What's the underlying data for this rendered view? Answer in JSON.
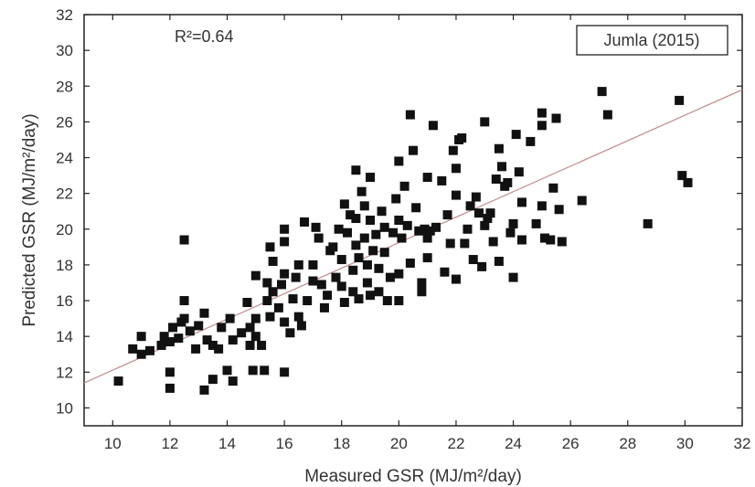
{
  "chart_data": {
    "type": "scatter",
    "xlabel": "Measured GSR (MJ/m²/day)",
    "ylabel": "Predicted GSR (MJ/m²/day)",
    "xlim": [
      9,
      32
    ],
    "ylim": [
      9,
      32
    ],
    "xticks": [
      10,
      12,
      14,
      16,
      18,
      20,
      22,
      24,
      26,
      28,
      30,
      32
    ],
    "yticks": [
      10,
      12,
      14,
      16,
      18,
      20,
      22,
      24,
      26,
      28,
      30,
      32
    ],
    "r2_text": "R²=0.64",
    "legend": "Jumla (2015)",
    "legend_position": "top-right",
    "grid": false,
    "marker_color": "#111111",
    "fit_line": {
      "x": [
        9,
        32
      ],
      "y": [
        11.4,
        27.8
      ],
      "color": "#c08a8a"
    },
    "points": [
      [
        10.2,
        11.5
      ],
      [
        10.7,
        13.3
      ],
      [
        11.0,
        14.0
      ],
      [
        11.0,
        13.0
      ],
      [
        11.3,
        13.2
      ],
      [
        11.7,
        13.5
      ],
      [
        11.8,
        14.0
      ],
      [
        12.0,
        12.0
      ],
      [
        12.0,
        11.1
      ],
      [
        12.0,
        13.7
      ],
      [
        12.1,
        14.5
      ],
      [
        12.3,
        13.9
      ],
      [
        12.4,
        14.8
      ],
      [
        12.5,
        19.4
      ],
      [
        12.5,
        16.0
      ],
      [
        12.5,
        15.0
      ],
      [
        12.7,
        14.3
      ],
      [
        12.9,
        13.3
      ],
      [
        13.0,
        14.6
      ],
      [
        13.2,
        15.3
      ],
      [
        13.2,
        11.0
      ],
      [
        13.3,
        13.8
      ],
      [
        13.5,
        13.5
      ],
      [
        13.5,
        11.6
      ],
      [
        13.7,
        13.3
      ],
      [
        13.8,
        14.5
      ],
      [
        14.0,
        12.1
      ],
      [
        14.1,
        15.0
      ],
      [
        14.2,
        11.5
      ],
      [
        14.2,
        13.8
      ],
      [
        14.5,
        14.2
      ],
      [
        14.7,
        15.9
      ],
      [
        14.8,
        14.5
      ],
      [
        14.8,
        13.5
      ],
      [
        14.9,
        12.1
      ],
      [
        15.0,
        17.4
      ],
      [
        15.0,
        14.0
      ],
      [
        15.0,
        15.0
      ],
      [
        15.2,
        13.5
      ],
      [
        15.3,
        12.1
      ],
      [
        15.4,
        17.0
      ],
      [
        15.4,
        16.0
      ],
      [
        15.5,
        19.0
      ],
      [
        15.5,
        15.1
      ],
      [
        15.6,
        18.2
      ],
      [
        15.6,
        16.5
      ],
      [
        15.8,
        15.6
      ],
      [
        15.9,
        16.9
      ],
      [
        16.0,
        12.0
      ],
      [
        16.0,
        19.3
      ],
      [
        16.0,
        20.0
      ],
      [
        16.0,
        17.5
      ],
      [
        16.0,
        14.8
      ],
      [
        16.2,
        14.2
      ],
      [
        16.3,
        16.1
      ],
      [
        16.4,
        17.3
      ],
      [
        16.5,
        18.0
      ],
      [
        16.5,
        15.1
      ],
      [
        16.6,
        14.6
      ],
      [
        16.7,
        20.4
      ],
      [
        16.8,
        16.0
      ],
      [
        17.0,
        18.0
      ],
      [
        17.0,
        17.1
      ],
      [
        17.1,
        20.1
      ],
      [
        17.2,
        19.5
      ],
      [
        17.3,
        16.9
      ],
      [
        17.4,
        15.6
      ],
      [
        17.5,
        16.3
      ],
      [
        17.6,
        18.8
      ],
      [
        17.7,
        19.0
      ],
      [
        17.8,
        17.3
      ],
      [
        17.9,
        20.0
      ],
      [
        18.0,
        16.8
      ],
      [
        18.0,
        18.3
      ],
      [
        18.1,
        21.4
      ],
      [
        18.1,
        15.9
      ],
      [
        18.2,
        19.8
      ],
      [
        18.3,
        20.8
      ],
      [
        18.4,
        17.7
      ],
      [
        18.4,
        16.5
      ],
      [
        18.5,
        23.3
      ],
      [
        18.5,
        20.6
      ],
      [
        18.5,
        19.1
      ],
      [
        18.6,
        18.4
      ],
      [
        18.6,
        16.1
      ],
      [
        18.7,
        22.1
      ],
      [
        18.8,
        21.3
      ],
      [
        18.8,
        19.5
      ],
      [
        18.9,
        18.0
      ],
      [
        18.9,
        17.0
      ],
      [
        19.0,
        22.9
      ],
      [
        19.0,
        20.5
      ],
      [
        19.0,
        16.3
      ],
      [
        19.1,
        18.8
      ],
      [
        19.2,
        19.7
      ],
      [
        19.3,
        17.8
      ],
      [
        19.3,
        16.5
      ],
      [
        19.4,
        21.0
      ],
      [
        19.5,
        20.1
      ],
      [
        19.5,
        18.7
      ],
      [
        19.6,
        16.0
      ],
      [
        19.7,
        17.3
      ],
      [
        19.8,
        19.8
      ],
      [
        19.9,
        21.7
      ],
      [
        20.0,
        23.8
      ],
      [
        20.0,
        20.5
      ],
      [
        20.0,
        17.5
      ],
      [
        20.0,
        16.0
      ],
      [
        20.1,
        19.5
      ],
      [
        20.2,
        22.4
      ],
      [
        20.3,
        20.2
      ],
      [
        20.4,
        26.4
      ],
      [
        20.4,
        18.1
      ],
      [
        20.5,
        24.4
      ],
      [
        20.6,
        21.2
      ],
      [
        20.7,
        19.9
      ],
      [
        20.8,
        17.0
      ],
      [
        20.8,
        16.5
      ],
      [
        20.9,
        20.0
      ],
      [
        21.0,
        22.9
      ],
      [
        21.0,
        19.5
      ],
      [
        21.0,
        18.4
      ],
      [
        21.1,
        19.9
      ],
      [
        21.2,
        25.8
      ],
      [
        21.3,
        20.1
      ],
      [
        21.5,
        22.7
      ],
      [
        21.6,
        17.6
      ],
      [
        21.7,
        20.8
      ],
      [
        21.8,
        19.2
      ],
      [
        21.9,
        24.4
      ],
      [
        22.0,
        23.4
      ],
      [
        22.0,
        21.9
      ],
      [
        22.0,
        17.2
      ],
      [
        22.1,
        25.0
      ],
      [
        22.2,
        25.1
      ],
      [
        22.3,
        19.2
      ],
      [
        22.4,
        20.0
      ],
      [
        22.5,
        21.3
      ],
      [
        22.6,
        18.3
      ],
      [
        22.7,
        21.8
      ],
      [
        22.8,
        20.9
      ],
      [
        22.9,
        17.9
      ],
      [
        23.0,
        26.0
      ],
      [
        23.0,
        20.2
      ],
      [
        23.1,
        20.6
      ],
      [
        23.2,
        20.9
      ],
      [
        23.3,
        19.3
      ],
      [
        23.4,
        22.8
      ],
      [
        23.5,
        24.5
      ],
      [
        23.5,
        18.2
      ],
      [
        23.6,
        23.5
      ],
      [
        23.7,
        22.4
      ],
      [
        23.8,
        22.6
      ],
      [
        23.9,
        19.8
      ],
      [
        24.0,
        20.3
      ],
      [
        24.0,
        17.3
      ],
      [
        24.1,
        25.3
      ],
      [
        24.2,
        23.2
      ],
      [
        24.3,
        21.5
      ],
      [
        24.3,
        19.4
      ],
      [
        24.6,
        24.9
      ],
      [
        24.8,
        20.3
      ],
      [
        25.0,
        26.5
      ],
      [
        25.0,
        25.8
      ],
      [
        25.0,
        21.3
      ],
      [
        25.1,
        19.5
      ],
      [
        25.3,
        19.4
      ],
      [
        25.4,
        22.3
      ],
      [
        25.5,
        26.2
      ],
      [
        25.6,
        21.1
      ],
      [
        25.7,
        19.3
      ],
      [
        26.4,
        21.6
      ],
      [
        27.1,
        27.7
      ],
      [
        27.3,
        26.4
      ],
      [
        28.7,
        20.3
      ],
      [
        29.8,
        27.2
      ],
      [
        29.9,
        23.0
      ],
      [
        30.1,
        22.6
      ]
    ]
  }
}
